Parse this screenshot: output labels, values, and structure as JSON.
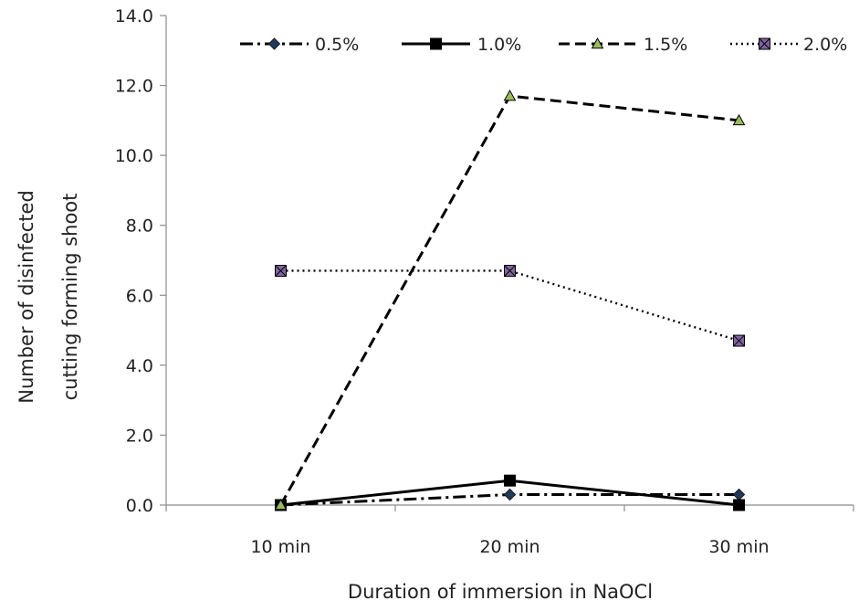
{
  "chart_data": {
    "type": "line",
    "title": "",
    "xlabel": "Duration of immersion in NaOCl",
    "ylabel_lines": [
      "Number of disinfected",
      "cutting forming shoot"
    ],
    "categories": [
      "10 min",
      "20 min",
      "30 min"
    ],
    "ylim": [
      0,
      14
    ],
    "yticks": [
      "0.0",
      "2.0",
      "4.0",
      "6.0",
      "8.0",
      "10.0",
      "12.0",
      "14.0"
    ],
    "grid": false,
    "legend_position": "top",
    "series": [
      {
        "name": "0.5%",
        "values": [
          0.0,
          0.3,
          0.3
        ],
        "color": "#000000",
        "marker": "diamond",
        "marker_fill": "#1f3a5f",
        "dash": "dashdot"
      },
      {
        "name": "1.0%",
        "values": [
          0.0,
          0.7,
          0.0
        ],
        "color": "#000000",
        "marker": "square",
        "marker_fill": "#000000",
        "dash": "solid"
      },
      {
        "name": "1.5%",
        "values": [
          0.0,
          11.7,
          11.0
        ],
        "color": "#000000",
        "marker": "triangle",
        "marker_fill": "#9bbb59",
        "dash": "dashed"
      },
      {
        "name": "2.0%",
        "values": [
          6.7,
          6.7,
          4.7
        ],
        "color": "#000000",
        "marker": "square-x",
        "marker_fill": "#8064a2",
        "dash": "dotted"
      }
    ]
  }
}
